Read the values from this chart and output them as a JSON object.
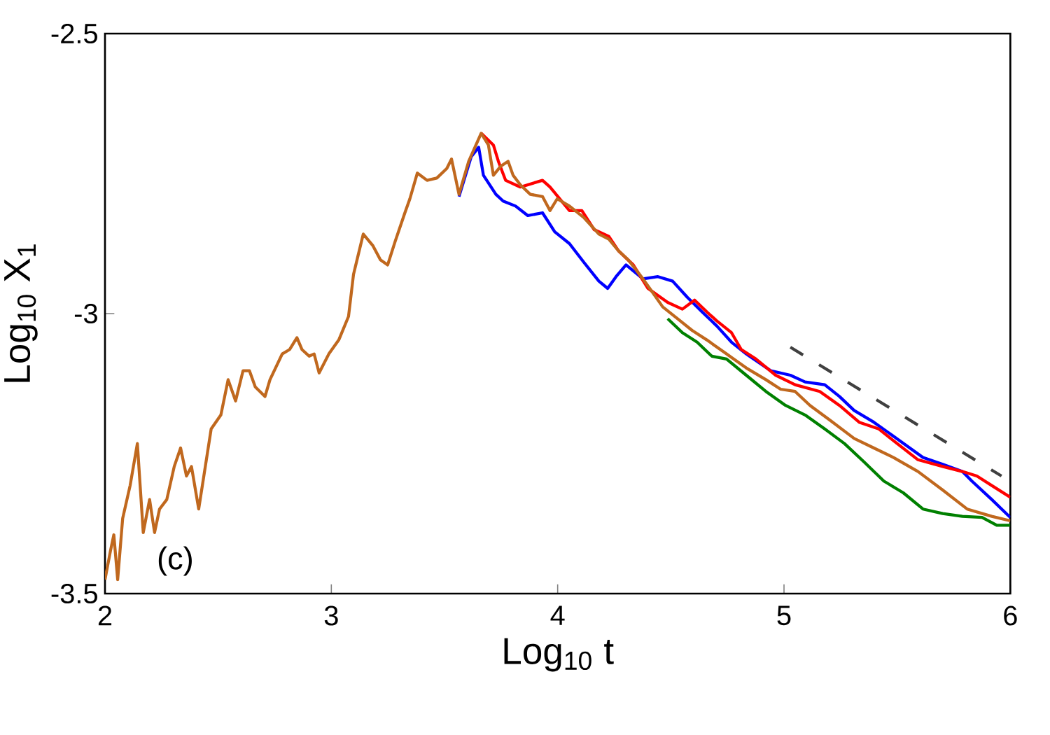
{
  "chart_data": {
    "type": "line",
    "xlabel": "Log$_{10}$ t",
    "ylabel": "Log$_{10}$ X$_{1}$",
    "xlim": [
      2,
      6
    ],
    "ylim": [
      -3.5,
      -2.5
    ],
    "xticks": [
      2,
      3,
      4,
      5,
      6
    ],
    "yticks": [
      -2.5,
      -3,
      -3.5
    ],
    "grid": false,
    "marker": "none",
    "line_style": "solid",
    "annotations": [
      "(c)"
    ],
    "series": [
      {
        "color": "#008000",
        "x": [
          4.486,
          4.551,
          4.616,
          4.681,
          4.746,
          4.833,
          4.92,
          5.007,
          5.093,
          5.18,
          5.267,
          5.354,
          5.441,
          5.527,
          5.614,
          5.701,
          5.788,
          5.875,
          5.94,
          6.0
        ],
        "values": [
          -3.009,
          -3.034,
          -3.051,
          -3.076,
          -3.081,
          -3.11,
          -3.139,
          -3.164,
          -3.181,
          -3.206,
          -3.232,
          -3.265,
          -3.299,
          -3.32,
          -3.349,
          -3.357,
          -3.362,
          -3.364,
          -3.378,
          -3.378
        ]
      },
      {
        "color": "#0000ff",
        "x": [
          3.564,
          3.618,
          3.651,
          3.672,
          3.727,
          3.759,
          3.814,
          3.868,
          3.933,
          3.987,
          4.052,
          4.117,
          4.182,
          4.221,
          4.258,
          4.302,
          4.377,
          4.443,
          4.508,
          4.573,
          4.638,
          4.703,
          4.768,
          4.833,
          4.941,
          5.028,
          5.093,
          5.18,
          5.245,
          5.31,
          5.397,
          5.484,
          5.614,
          5.701,
          5.788,
          5.83,
          5.918,
          6.0
        ],
        "values": [
          -2.791,
          -2.72,
          -2.703,
          -2.753,
          -2.787,
          -2.799,
          -2.808,
          -2.825,
          -2.82,
          -2.854,
          -2.875,
          -2.909,
          -2.942,
          -2.955,
          -2.934,
          -2.913,
          -2.938,
          -2.934,
          -2.942,
          -2.971,
          -2.997,
          -3.022,
          -3.051,
          -3.072,
          -3.102,
          -3.11,
          -3.122,
          -3.127,
          -3.148,
          -3.173,
          -3.194,
          -3.219,
          -3.257,
          -3.269,
          -3.282,
          -3.299,
          -3.332,
          -3.364
        ]
      },
      {
        "color": "#ff0000",
        "x": [
          3.662,
          3.716,
          3.738,
          3.77,
          3.835,
          3.933,
          3.966,
          4.052,
          4.107,
          4.161,
          4.226,
          4.269,
          4.334,
          4.399,
          4.486,
          4.551,
          4.605,
          4.659,
          4.703,
          4.768,
          4.811,
          4.876,
          4.963,
          5.049,
          5.158,
          5.245,
          5.332,
          5.419,
          5.484,
          5.592,
          5.701,
          5.788,
          5.852,
          5.918,
          6.0
        ],
        "values": [
          -2.678,
          -2.699,
          -2.728,
          -2.762,
          -2.774,
          -2.762,
          -2.774,
          -2.816,
          -2.816,
          -2.85,
          -2.862,
          -2.888,
          -2.913,
          -2.955,
          -2.98,
          -2.992,
          -2.976,
          -2.997,
          -3.013,
          -3.034,
          -3.064,
          -3.081,
          -3.11,
          -3.127,
          -3.139,
          -3.164,
          -3.194,
          -3.206,
          -3.227,
          -3.261,
          -3.273,
          -3.282,
          -3.29,
          -3.307,
          -3.328
        ]
      },
      {
        "color": "#c0681e",
        "x": [
          2.0,
          2.024,
          2.039,
          2.056,
          2.078,
          2.111,
          2.143,
          2.169,
          2.197,
          2.219,
          2.241,
          2.273,
          2.306,
          2.334,
          2.36,
          2.382,
          2.414,
          2.469,
          2.512,
          2.544,
          2.577,
          2.61,
          2.638,
          2.664,
          2.707,
          2.729,
          2.783,
          2.816,
          2.848,
          2.87,
          2.902,
          2.924,
          2.946,
          2.989,
          3.033,
          3.076,
          3.098,
          3.141,
          3.184,
          3.217,
          3.249,
          3.282,
          3.325,
          3.347,
          3.38,
          3.423,
          3.466,
          3.51,
          3.531,
          3.564,
          3.607,
          3.662,
          3.694,
          3.716,
          3.748,
          3.781,
          3.803,
          3.835,
          3.879,
          3.933,
          3.966,
          3.998,
          4.052,
          4.117,
          4.182,
          4.226,
          4.269,
          4.312,
          4.377,
          4.421,
          4.464,
          4.529,
          4.594,
          4.659,
          4.746,
          4.833,
          4.92,
          4.985,
          5.049,
          5.115,
          5.202,
          5.31,
          5.397,
          5.484,
          5.592,
          5.701,
          5.809,
          5.918,
          6.0
        ],
        "values": [
          -3.475,
          -3.424,
          -3.395,
          -3.475,
          -3.366,
          -3.307,
          -3.232,
          -3.391,
          -3.332,
          -3.391,
          -3.349,
          -3.332,
          -3.273,
          -3.24,
          -3.29,
          -3.273,
          -3.349,
          -3.206,
          -3.181,
          -3.118,
          -3.156,
          -3.102,
          -3.102,
          -3.131,
          -3.148,
          -3.118,
          -3.072,
          -3.064,
          -3.043,
          -3.064,
          -3.076,
          -3.072,
          -3.106,
          -3.072,
          -3.047,
          -3.005,
          -2.93,
          -2.858,
          -2.879,
          -2.904,
          -2.913,
          -2.871,
          -2.82,
          -2.795,
          -2.749,
          -2.762,
          -2.758,
          -2.741,
          -2.724,
          -2.787,
          -2.728,
          -2.678,
          -2.699,
          -2.753,
          -2.737,
          -2.728,
          -2.753,
          -2.77,
          -2.787,
          -2.791,
          -2.816,
          -2.795,
          -2.808,
          -2.829,
          -2.858,
          -2.867,
          -2.888,
          -2.904,
          -2.938,
          -2.963,
          -2.988,
          -3.009,
          -3.03,
          -3.047,
          -3.072,
          -3.097,
          -3.118,
          -3.135,
          -3.139,
          -3.164,
          -3.19,
          -3.223,
          -3.24,
          -3.257,
          -3.282,
          -3.315,
          -3.349,
          -3.362,
          -3.37
        ]
      },
      {
        "color": "#404040",
        "line_style": "dashed",
        "x": [
          5.028,
          5.961
        ],
        "values": [
          -3.06,
          -3.29
        ]
      }
    ]
  }
}
